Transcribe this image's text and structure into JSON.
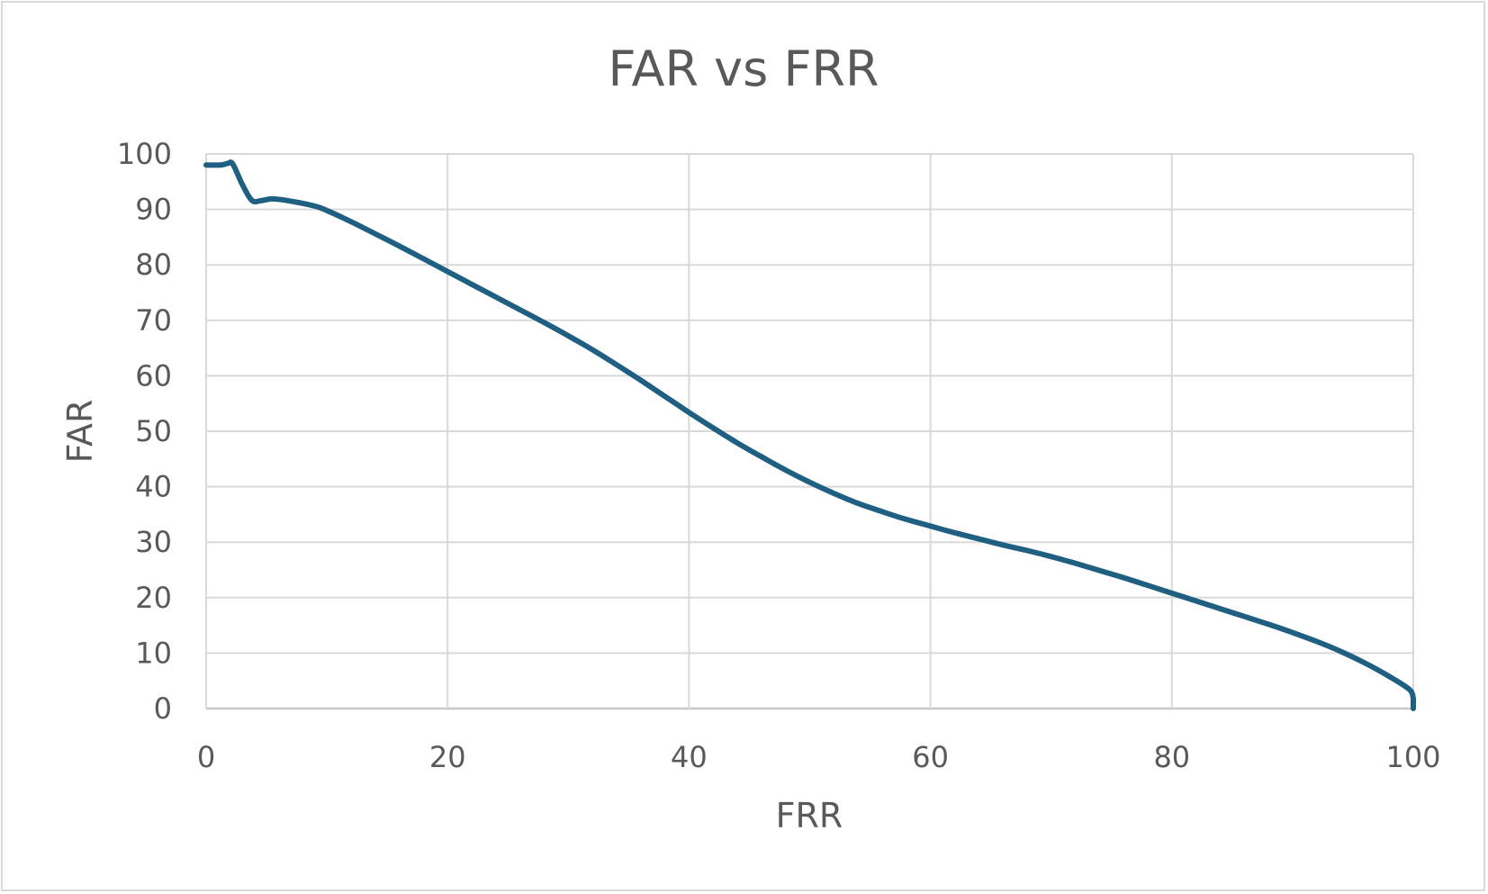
{
  "chart_data": {
    "type": "line",
    "title": "FAR vs FRR",
    "xlabel": "FRR",
    "ylabel": "FAR",
    "xlim": [
      0,
      100
    ],
    "ylim": [
      0,
      100
    ],
    "x_ticks": [
      "0",
      "20",
      "40",
      "60",
      "80",
      "100"
    ],
    "y_ticks": [
      "0",
      "10",
      "20",
      "30",
      "40",
      "50",
      "60",
      "70",
      "80",
      "90",
      "100"
    ],
    "grid": true,
    "legend": "none",
    "series": [
      {
        "color": "#1f5f82",
        "x": [
          0,
          1.2,
          1.8,
          2.2,
          3.0,
          3.8,
          4.6,
          5.5,
          7,
          9,
          10,
          12,
          14,
          16,
          18,
          20,
          22,
          24,
          26,
          28,
          30,
          32,
          34,
          36,
          38,
          40,
          42,
          44,
          46,
          48,
          50,
          52,
          54,
          56,
          58,
          60,
          62,
          64,
          66,
          68,
          70,
          72,
          74,
          76,
          78,
          80,
          82,
          84,
          86,
          88,
          90,
          92,
          94,
          96,
          98,
          99.7,
          100
        ],
        "y": [
          98,
          98,
          98.3,
          98.2,
          94.5,
          91.6,
          91.6,
          91.9,
          91.5,
          90.6,
          89.8,
          87.8,
          85.6,
          83.4,
          81.1,
          78.8,
          76.5,
          74.2,
          71.9,
          69.6,
          67.2,
          64.7,
          62.0,
          59.2,
          56.3,
          53.4,
          50.6,
          47.9,
          45.4,
          43.0,
          40.8,
          38.8,
          37.0,
          35.5,
          34.1,
          32.9,
          31.7,
          30.6,
          29.5,
          28.5,
          27.4,
          26.2,
          24.9,
          23.6,
          22.2,
          20.8,
          19.4,
          18.0,
          16.6,
          15.2,
          13.7,
          12.1,
          10.3,
          8.2,
          5.8,
          3.4,
          1.8
        ]
      }
    ]
  }
}
